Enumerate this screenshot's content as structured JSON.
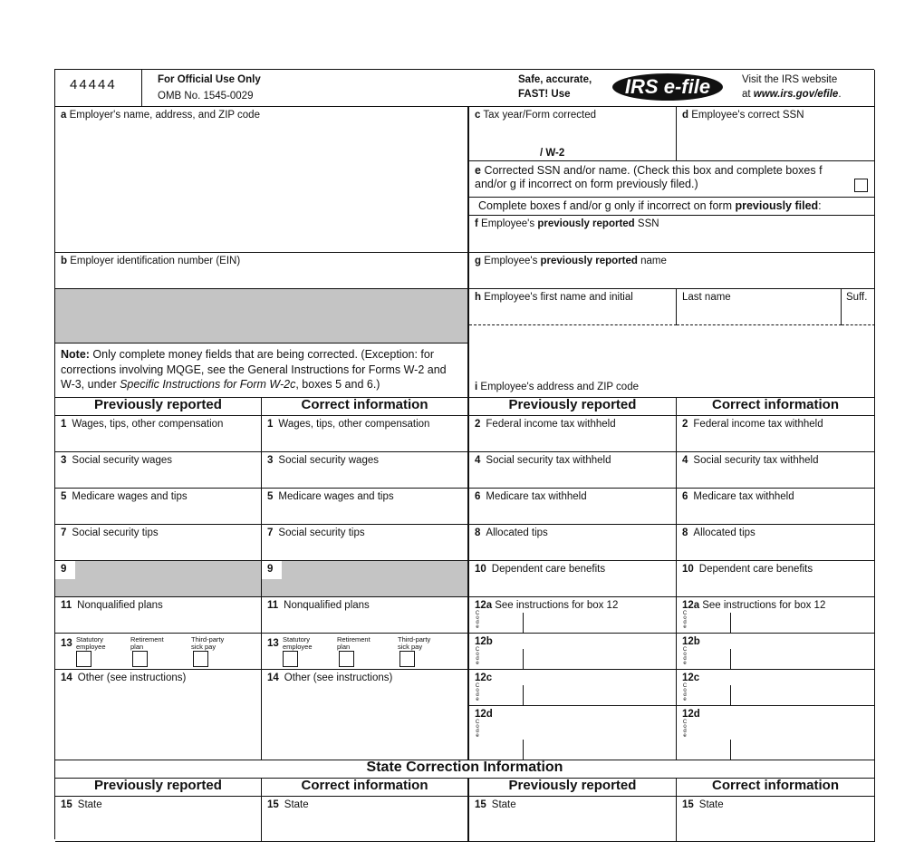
{
  "header": {
    "form_code": "44444",
    "official_use": "For Official Use Only",
    "omb": "OMB No. 1545-0029",
    "efile_tagline_1": "Safe, accurate,",
    "efile_tagline_2": "FAST! Use",
    "efile_logo": "IRS e-file",
    "visit_1": "Visit the IRS website",
    "visit_2_prefix": "at ",
    "visit_url": "www.irs.gov/efile",
    "visit_suffix": "."
  },
  "boxes": {
    "a": {
      "letter": "a",
      "label": "Employer's name, address, and ZIP code"
    },
    "b": {
      "letter": "b",
      "label": "Employer identification number (EIN)"
    },
    "c": {
      "letter": "c",
      "label": "Tax year/Form corrected",
      "form": "/ W-2"
    },
    "d": {
      "letter": "d",
      "label": "Employee's correct SSN"
    },
    "e": {
      "letter": "e",
      "label": "Corrected SSN and/or name. (Check this box and complete boxes f and/or g if incorrect on form previously filed.)"
    },
    "complete_note_1": "Complete boxes f and/or g only if incorrect on form ",
    "complete_note_bold": "previously filed",
    "f": {
      "letter": "f",
      "label_1": "Employee's ",
      "label_bold": "previously reported",
      "label_2": " SSN"
    },
    "g": {
      "letter": "g",
      "label_1": "Employee's ",
      "label_bold": "previously reported",
      "label_2": " name"
    },
    "h": {
      "letter": "h",
      "label": "Employee's first name and initial",
      "last": "Last name",
      "suff": "Suff."
    },
    "i": {
      "letter": "i",
      "label": "Employee's address and ZIP code"
    }
  },
  "note": {
    "bold": "Note:",
    "text_1": " Only complete money fields that are being corrected. (Exception: for corrections involving MQGE, see the General Instructions for Forms W-2 and W-3, under ",
    "italic": "Specific Instructions for Form W-2c",
    "text_2": ", boxes 5 and 6.)"
  },
  "columns": {
    "prev": "Previously reported",
    "correct": "Correct information"
  },
  "left_rows": [
    {
      "num": "1",
      "label": "Wages, tips, other compensation"
    },
    {
      "num": "3",
      "label": "Social security wages"
    },
    {
      "num": "5",
      "label": "Medicare wages and tips"
    },
    {
      "num": "7",
      "label": "Social security tips"
    },
    {
      "num": "9",
      "label": ""
    },
    {
      "num": "11",
      "label": "Nonqualified plans"
    }
  ],
  "right_rows": [
    {
      "num": "2",
      "label": "Federal income tax withheld"
    },
    {
      "num": "4",
      "label": "Social security tax withheld"
    },
    {
      "num": "6",
      "label": "Medicare tax withheld"
    },
    {
      "num": "8",
      "label": "Allocated tips"
    },
    {
      "num": "10",
      "label": "Dependent care benefits"
    }
  ],
  "box12": [
    {
      "num": "12a",
      "label": "See instructions for box 12"
    },
    {
      "num": "12b",
      "label": ""
    },
    {
      "num": "12c",
      "label": ""
    },
    {
      "num": "12d",
      "label": ""
    }
  ],
  "code_letters": "Code",
  "box13": {
    "num": "13",
    "statutory": "Statutory employee",
    "retirement": "Retirement plan",
    "thirdparty": "Third-party sick pay"
  },
  "box14": {
    "num": "14",
    "label": "Other (see instructions)"
  },
  "state": {
    "title": "State Correction Information",
    "box15": {
      "num": "15",
      "label": "State"
    }
  }
}
